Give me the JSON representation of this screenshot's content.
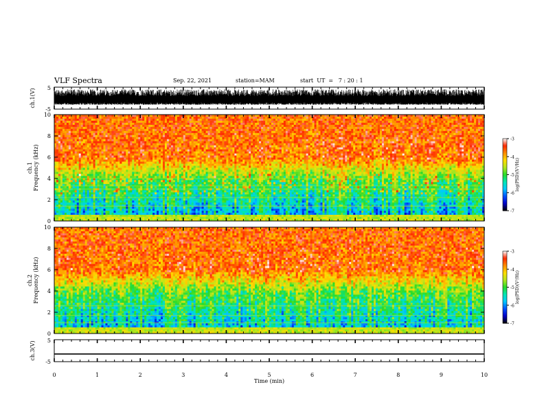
{
  "header": {
    "title": "VLF Spectra",
    "date": "Sep. 22, 2021",
    "station": "station=MAM",
    "start": "start  UT  =   7 : 20 : 1"
  },
  "chart_data": [
    {
      "name": "ch1-waveform",
      "type": "line",
      "ylabel": "ch.1(V)",
      "ylim": [
        -5,
        5
      ],
      "yticks": [
        "5",
        "-5"
      ],
      "description_of_signal": "dense broadband noise spanning roughly -3 to 4 V"
    },
    {
      "name": "ch1-spectrogram",
      "type": "heatmap",
      "ylabel_line1": "ch.1",
      "ylabel_line2": "Frequency (kHz)",
      "ylim": [
        0,
        10
      ],
      "yticks": [
        "0",
        "2",
        "4",
        "6",
        "8",
        "10"
      ],
      "colorbar": {
        "label": "log(PSD)(V²/Hz)",
        "range": [
          -7,
          -3
        ],
        "ticks": [
          "-3",
          "-4",
          "-5",
          "-6",
          "-7"
        ]
      }
    },
    {
      "name": "ch2-spectrogram",
      "type": "heatmap",
      "ylabel_line1": "ch.2",
      "ylabel_line2": "Frequency (kHz)",
      "ylim": [
        0,
        10
      ],
      "yticks": [
        "0",
        "2",
        "4",
        "6",
        "8",
        "10"
      ],
      "colorbar": {
        "label": "log(PSD)(V²/Hz)",
        "range": [
          -7,
          -3
        ],
        "ticks": [
          "-3",
          "-4",
          "-5",
          "-6",
          "-7"
        ]
      }
    },
    {
      "name": "ch3-waveform",
      "type": "line",
      "ylabel": "ch.3(V)",
      "ylim": [
        -5,
        5
      ],
      "yticks": [
        "5",
        "-5"
      ],
      "constant_value": -1.5
    }
  ],
  "xaxis": {
    "label": "Time (min)",
    "range": [
      0,
      10
    ],
    "ticks": [
      "0",
      "1",
      "2",
      "3",
      "4",
      "5",
      "6",
      "7",
      "8",
      "9",
      "10"
    ]
  },
  "colors": {
    "colormap": [
      "#000000",
      "#0000c8",
      "#0050ff",
      "#00c8ff",
      "#00e6b4",
      "#28dc28",
      "#b4e61e",
      "#ffdc00",
      "#ff8c00",
      "#ff2800",
      "#ffffff"
    ]
  }
}
